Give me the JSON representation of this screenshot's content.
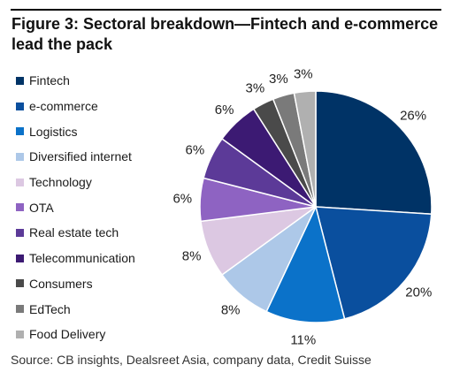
{
  "figure": {
    "title": "Figure 3: Sectoral breakdown—Fintech and e-commerce lead the pack",
    "source": "Source: CB insights, Dealsreet Asia, company data, Credit Suisse"
  },
  "chart_data": {
    "type": "pie",
    "title": "",
    "legend_position": "left",
    "start_angle": "12 o'clock, clockwise",
    "slices": [
      {
        "name": "Fintech",
        "value": 26,
        "label": "26%",
        "color": "#003366"
      },
      {
        "name": "e-commerce",
        "value": 20,
        "label": "20%",
        "color": "#0a4f9e"
      },
      {
        "name": "Logistics",
        "value": 11,
        "label": "11%",
        "color": "#0b72c9"
      },
      {
        "name": "Diversified internet",
        "value": 8,
        "label": "8%",
        "color": "#adc8e8"
      },
      {
        "name": "Technology",
        "value": 8,
        "label": "8%",
        "color": "#dcc8e2"
      },
      {
        "name": "OTA",
        "value": 6,
        "label": "6%",
        "color": "#8e63c2"
      },
      {
        "name": "Real estate tech",
        "value": 6,
        "label": "6%",
        "color": "#5c3a98"
      },
      {
        "name": "Telecommunication",
        "value": 6,
        "label": "6%",
        "color": "#3c1a73"
      },
      {
        "name": "Consumers",
        "value": 3,
        "label": "3%",
        "color": "#4a4a4a"
      },
      {
        "name": "EdTech",
        "value": 3,
        "label": "3%",
        "color": "#7a7a7a"
      },
      {
        "name": "Food Delivery",
        "value": 3,
        "label": "3%",
        "color": "#b0b0b0"
      }
    ]
  }
}
